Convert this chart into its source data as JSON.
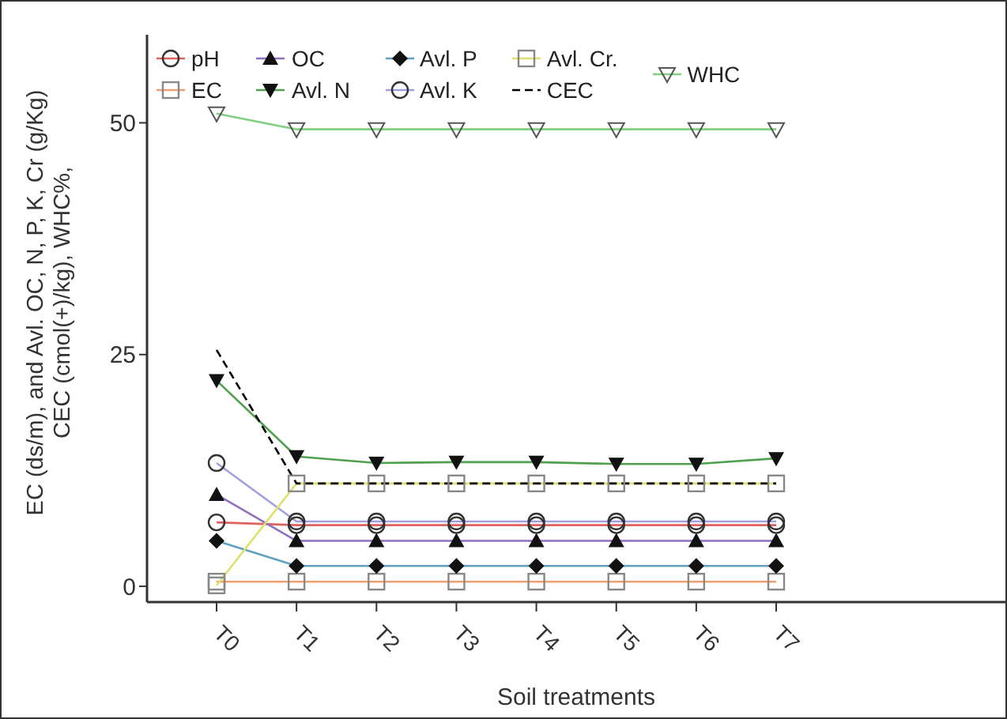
{
  "chart_data": {
    "type": "line",
    "xlabel": "Soil treatments",
    "ylabel": "EC (ds/m), and Avl. OC, N, P, K, Cr  (g/Kg)\nCEC (cmol(+)/kg), WHC%,",
    "categories": [
      "T0",
      "T1",
      "T2",
      "T3",
      "T4",
      "T5",
      "T6",
      "T7"
    ],
    "series": [
      {
        "name": "pH",
        "color": "#e06060",
        "marker": "circle",
        "values": [
          6.9,
          6.6,
          6.6,
          6.6,
          6.6,
          6.6,
          6.6,
          6.6
        ]
      },
      {
        "name": "EC",
        "color": "#f0a070",
        "marker": "square",
        "values": [
          0.5,
          0.5,
          0.5,
          0.5,
          0.5,
          0.5,
          0.5,
          0.5
        ]
      },
      {
        "name": "OC",
        "color": "#9070c0",
        "marker": "triangle",
        "values": [
          9.9,
          4.9,
          4.9,
          4.9,
          4.9,
          4.9,
          4.9,
          4.9
        ]
      },
      {
        "name": "Avl.  N",
        "color": "#50a050",
        "marker": "triangle-down",
        "values": [
          22.2,
          14.0,
          13.3,
          13.4,
          13.4,
          13.2,
          13.2,
          13.8
        ]
      },
      {
        "name": "Avl. P",
        "color": "#60a0c0",
        "marker": "diamond",
        "values": [
          4.9,
          2.2,
          2.2,
          2.2,
          2.2,
          2.2,
          2.2,
          2.2
        ]
      },
      {
        "name": "Avl. K",
        "color": "#a0a0e0",
        "marker": "circle",
        "values": [
          13.3,
          7.0,
          7.0,
          7.0,
          7.0,
          7.0,
          7.0,
          7.0
        ]
      },
      {
        "name": "Avl. Cr.",
        "color": "#e0e070",
        "marker": "square",
        "values": [
          0.1,
          11.1,
          11.1,
          11.1,
          11.1,
          11.1,
          11.1,
          11.1
        ]
      },
      {
        "name": "CEC",
        "color": "#000000",
        "marker": "none",
        "line_style": "dashed",
        "values": [
          25.5,
          11.1,
          11.1,
          11.1,
          11.1,
          11.1,
          11.1,
          11.1
        ]
      },
      {
        "name": "WHC",
        "color": "#80d080",
        "marker": "triangle-down",
        "values": [
          51.0,
          49.3,
          49.3,
          49.3,
          49.3,
          49.3,
          49.3,
          49.3
        ]
      }
    ],
    "ylim": [
      -1.7,
      59.5
    ],
    "yticks": [
      0,
      25,
      50
    ],
    "grid": false,
    "legend": "top left"
  }
}
